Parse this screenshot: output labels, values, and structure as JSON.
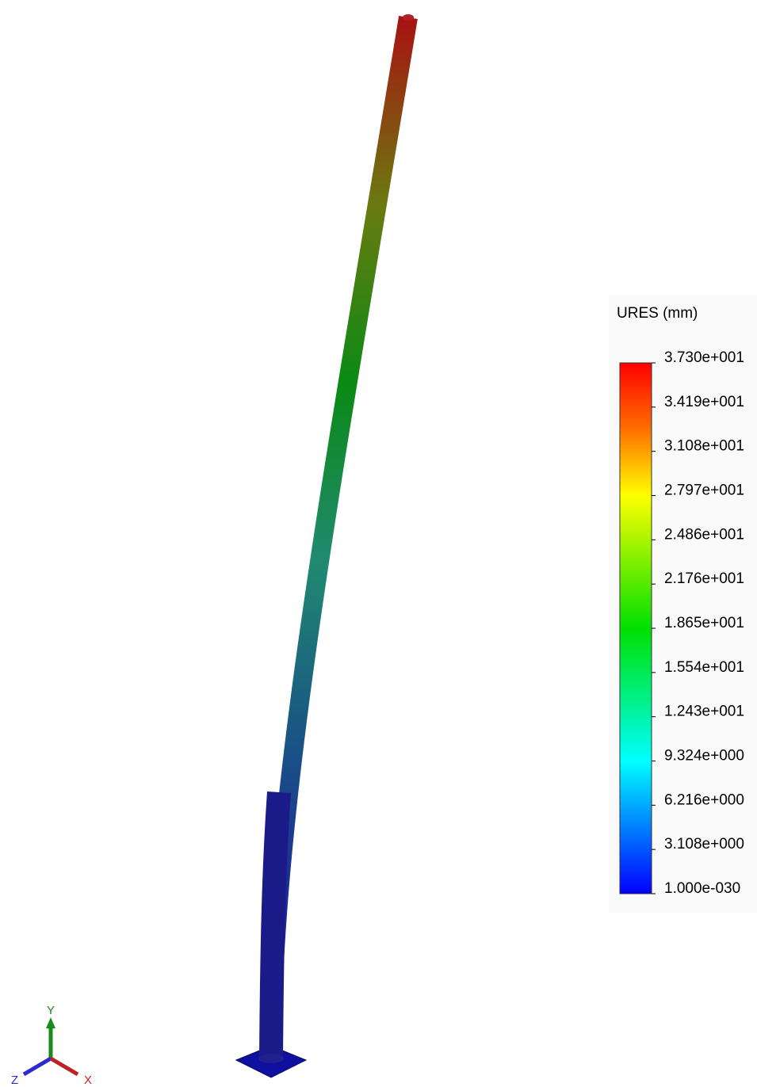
{
  "legend": {
    "title": "URES (mm)",
    "labels": [
      "3.730e+001",
      "3.419e+001",
      "3.108e+001",
      "2.797e+001",
      "2.486e+001",
      "2.176e+001",
      "1.865e+001",
      "1.554e+001",
      "1.243e+001",
      "9.324e+000",
      "6.216e+000",
      "3.108e+000",
      "1.000e-030"
    ]
  },
  "triad": {
    "y": "Y",
    "z": "Z",
    "x": "X"
  }
}
